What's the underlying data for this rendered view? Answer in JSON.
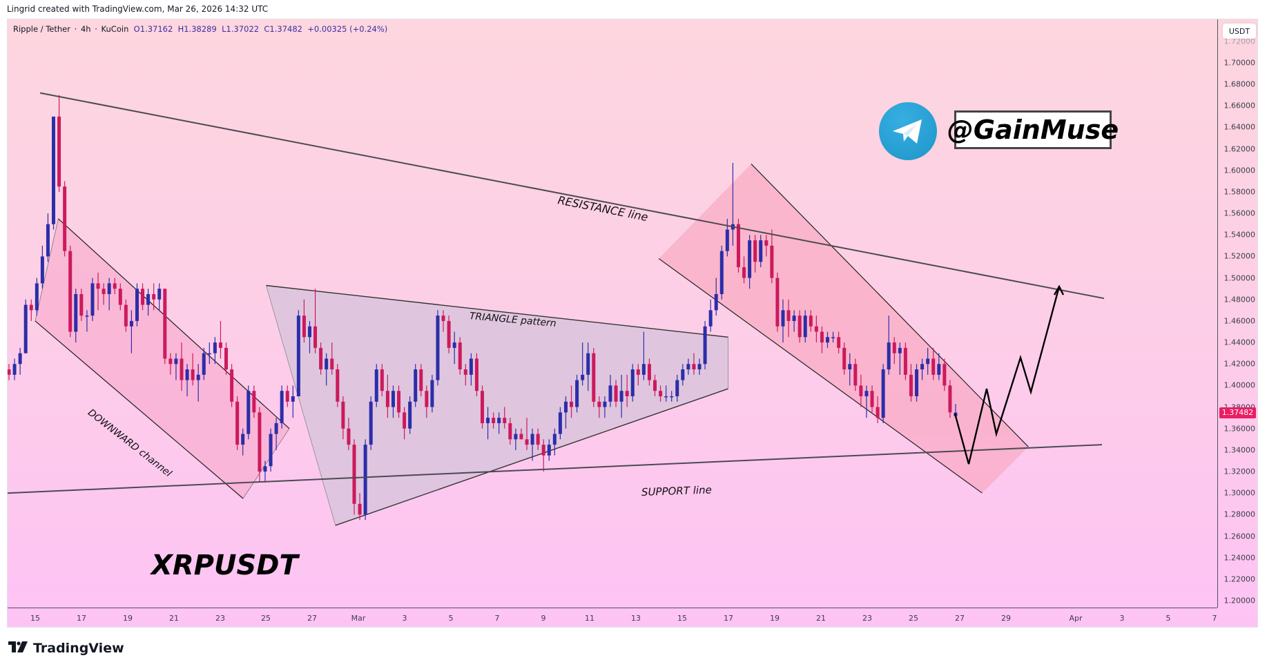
{
  "credit": "Lingrid created with TradingView.com, Mar 26, 2026 14:32 UTC",
  "legend": {
    "symbol": "Ripple / Tether",
    "interval": "4h",
    "exchange": "KuCoin",
    "open": "O1.37162",
    "high": "H1.38289",
    "low": "L1.37022",
    "close": "C1.37482",
    "change": "+0.00325 (+0.24%)"
  },
  "price_axis": {
    "currency": "USDT",
    "last_price": "1.37482",
    "ticks": [
      "1.72000",
      "1.70000",
      "1.68000",
      "1.66000",
      "1.64000",
      "1.62000",
      "1.60000",
      "1.58000",
      "1.56000",
      "1.54000",
      "1.52000",
      "1.50000",
      "1.48000",
      "1.46000",
      "1.44000",
      "1.42000",
      "1.40000",
      "1.38000",
      "1.36000",
      "1.34000",
      "1.32000",
      "1.30000",
      "1.28000",
      "1.26000",
      "1.24000",
      "1.22000",
      "1.20000"
    ]
  },
  "time_axis": {
    "labels": [
      "15",
      "17",
      "19",
      "21",
      "23",
      "25",
      "27",
      "Mar",
      "3",
      "5",
      "7",
      "9",
      "11",
      "13",
      "15",
      "17",
      "19",
      "21",
      "23",
      "25",
      "27",
      "29",
      "Apr",
      "3",
      "5",
      "7"
    ]
  },
  "annotations": {
    "resistance": "RESISTANCE line",
    "triangle": "TRIANGLE pattern",
    "downward": "DOWNWARD channel",
    "support": "SUPPORT line",
    "symbol_label": "XRPUSDT",
    "handle": "@GainMuse",
    "telegram_icon": "telegram-icon"
  },
  "branding": {
    "logo_text": "TradingView"
  },
  "colors": {
    "up_candle": "#2b2ea8",
    "down_candle": "#cc1a5c",
    "last_price_bg": "#e91e63",
    "channel_fill": "#f7a6c8",
    "triangle_fill": "#d9c4dc",
    "telegram_blue": "#2aa3dc"
  },
  "chart_data": {
    "type": "candlestick",
    "title": "Ripple / Tether · 4h · KuCoin",
    "xlabel": "",
    "ylabel": "USDT",
    "ylim": [
      1.19,
      1.725
    ],
    "x_range": [
      "Feb 14",
      "Apr 8"
    ],
    "last": {
      "open": 1.37162,
      "high": 1.38289,
      "low": 1.37022,
      "close": 1.37482,
      "change": 0.00325,
      "change_pct": 0.24
    },
    "candles_ohlc": [
      [
        1.415,
        1.42,
        1.405,
        1.41
      ],
      [
        1.41,
        1.425,
        1.405,
        1.42
      ],
      [
        1.42,
        1.435,
        1.41,
        1.43
      ],
      [
        1.43,
        1.48,
        1.43,
        1.475
      ],
      [
        1.475,
        1.48,
        1.46,
        1.47
      ],
      [
        1.47,
        1.5,
        1.465,
        1.495
      ],
      [
        1.495,
        1.53,
        1.49,
        1.52
      ],
      [
        1.52,
        1.56,
        1.515,
        1.55
      ],
      [
        1.55,
        1.65,
        1.545,
        1.65
      ],
      [
        1.65,
        1.67,
        1.58,
        1.585
      ],
      [
        1.585,
        1.59,
        1.52,
        1.525
      ],
      [
        1.525,
        1.53,
        1.445,
        1.45
      ],
      [
        1.45,
        1.49,
        1.44,
        1.485
      ],
      [
        1.485,
        1.49,
        1.46,
        1.465
      ],
      [
        1.465,
        1.47,
        1.45,
        1.465
      ],
      [
        1.465,
        1.5,
        1.46,
        1.495
      ],
      [
        1.495,
        1.505,
        1.47,
        1.49
      ],
      [
        1.49,
        1.495,
        1.475,
        1.485
      ],
      [
        1.485,
        1.5,
        1.47,
        1.495
      ],
      [
        1.495,
        1.5,
        1.485,
        1.49
      ],
      [
        1.49,
        1.495,
        1.47,
        1.475
      ],
      [
        1.475,
        1.48,
        1.45,
        1.455
      ],
      [
        1.455,
        1.47,
        1.43,
        1.46
      ],
      [
        1.46,
        1.495,
        1.455,
        1.49
      ],
      [
        1.49,
        1.495,
        1.47,
        1.475
      ],
      [
        1.475,
        1.49,
        1.465,
        1.485
      ],
      [
        1.485,
        1.495,
        1.47,
        1.48
      ],
      [
        1.48,
        1.495,
        1.47,
        1.49
      ],
      [
        1.49,
        1.49,
        1.42,
        1.425
      ],
      [
        1.425,
        1.43,
        1.41,
        1.42
      ],
      [
        1.42,
        1.43,
        1.405,
        1.425
      ],
      [
        1.425,
        1.44,
        1.395,
        1.405
      ],
      [
        1.405,
        1.42,
        1.39,
        1.415
      ],
      [
        1.415,
        1.43,
        1.4,
        1.405
      ],
      [
        1.405,
        1.42,
        1.385,
        1.41
      ],
      [
        1.41,
        1.435,
        1.405,
        1.43
      ],
      [
        1.43,
        1.44,
        1.42,
        1.43
      ],
      [
        1.43,
        1.445,
        1.42,
        1.44
      ],
      [
        1.44,
        1.46,
        1.425,
        1.435
      ],
      [
        1.435,
        1.44,
        1.41,
        1.415
      ],
      [
        1.415,
        1.42,
        1.38,
        1.385
      ],
      [
        1.385,
        1.39,
        1.34,
        1.345
      ],
      [
        1.345,
        1.36,
        1.335,
        1.355
      ],
      [
        1.355,
        1.4,
        1.35,
        1.395
      ],
      [
        1.395,
        1.4,
        1.37,
        1.375
      ],
      [
        1.375,
        1.38,
        1.31,
        1.32
      ],
      [
        1.32,
        1.33,
        1.31,
        1.325
      ],
      [
        1.325,
        1.36,
        1.32,
        1.355
      ],
      [
        1.355,
        1.37,
        1.34,
        1.365
      ],
      [
        1.365,
        1.4,
        1.36,
        1.395
      ],
      [
        1.395,
        1.4,
        1.38,
        1.385
      ],
      [
        1.385,
        1.4,
        1.37,
        1.39
      ],
      [
        1.39,
        1.47,
        1.39,
        1.465
      ],
      [
        1.465,
        1.48,
        1.44,
        1.445
      ],
      [
        1.445,
        1.46,
        1.43,
        1.455
      ],
      [
        1.455,
        1.49,
        1.43,
        1.435
      ],
      [
        1.435,
        1.44,
        1.41,
        1.415
      ],
      [
        1.415,
        1.43,
        1.4,
        1.425
      ],
      [
        1.425,
        1.44,
        1.41,
        1.415
      ],
      [
        1.415,
        1.42,
        1.38,
        1.385
      ],
      [
        1.385,
        1.39,
        1.35,
        1.36
      ],
      [
        1.36,
        1.37,
        1.34,
        1.345
      ],
      [
        1.345,
        1.35,
        1.28,
        1.29
      ],
      [
        1.29,
        1.3,
        1.275,
        1.28
      ],
      [
        1.28,
        1.35,
        1.275,
        1.345
      ],
      [
        1.345,
        1.39,
        1.34,
        1.385
      ],
      [
        1.385,
        1.42,
        1.38,
        1.415
      ],
      [
        1.415,
        1.42,
        1.39,
        1.395
      ],
      [
        1.395,
        1.41,
        1.37,
        1.38
      ],
      [
        1.38,
        1.4,
        1.37,
        1.395
      ],
      [
        1.395,
        1.4,
        1.37,
        1.375
      ],
      [
        1.375,
        1.38,
        1.35,
        1.36
      ],
      [
        1.36,
        1.39,
        1.355,
        1.385
      ],
      [
        1.385,
        1.42,
        1.38,
        1.415
      ],
      [
        1.415,
        1.42,
        1.39,
        1.395
      ],
      [
        1.395,
        1.4,
        1.37,
        1.38
      ],
      [
        1.38,
        1.41,
        1.375,
        1.405
      ],
      [
        1.405,
        1.47,
        1.4,
        1.465
      ],
      [
        1.465,
        1.47,
        1.45,
        1.46
      ],
      [
        1.46,
        1.465,
        1.43,
        1.435
      ],
      [
        1.435,
        1.45,
        1.42,
        1.44
      ],
      [
        1.44,
        1.445,
        1.41,
        1.415
      ],
      [
        1.415,
        1.42,
        1.4,
        1.41
      ],
      [
        1.41,
        1.43,
        1.4,
        1.425
      ],
      [
        1.425,
        1.43,
        1.39,
        1.395
      ],
      [
        1.395,
        1.4,
        1.36,
        1.365
      ],
      [
        1.365,
        1.38,
        1.35,
        1.37
      ],
      [
        1.37,
        1.375,
        1.36,
        1.365
      ],
      [
        1.365,
        1.375,
        1.355,
        1.37
      ],
      [
        1.37,
        1.38,
        1.36,
        1.365
      ],
      [
        1.365,
        1.37,
        1.345,
        1.35
      ],
      [
        1.35,
        1.36,
        1.34,
        1.355
      ],
      [
        1.355,
        1.36,
        1.35,
        1.35
      ],
      [
        1.35,
        1.37,
        1.34,
        1.345
      ],
      [
        1.345,
        1.36,
        1.33,
        1.355
      ],
      [
        1.355,
        1.36,
        1.34,
        1.345
      ],
      [
        1.345,
        1.35,
        1.32,
        1.335
      ],
      [
        1.335,
        1.35,
        1.33,
        1.345
      ],
      [
        1.345,
        1.36,
        1.335,
        1.355
      ],
      [
        1.355,
        1.38,
        1.35,
        1.375
      ],
      [
        1.375,
        1.39,
        1.36,
        1.385
      ],
      [
        1.385,
        1.4,
        1.37,
        1.38
      ],
      [
        1.38,
        1.41,
        1.375,
        1.405
      ],
      [
        1.405,
        1.44,
        1.4,
        1.41
      ],
      [
        1.41,
        1.44,
        1.395,
        1.43
      ],
      [
        1.43,
        1.435,
        1.38,
        1.385
      ],
      [
        1.385,
        1.39,
        1.37,
        1.38
      ],
      [
        1.38,
        1.39,
        1.37,
        1.385
      ],
      [
        1.385,
        1.41,
        1.38,
        1.4
      ],
      [
        1.4,
        1.405,
        1.38,
        1.385
      ],
      [
        1.385,
        1.41,
        1.37,
        1.395
      ],
      [
        1.395,
        1.41,
        1.38,
        1.39
      ],
      [
        1.39,
        1.42,
        1.385,
        1.415
      ],
      [
        1.415,
        1.42,
        1.4,
        1.41
      ],
      [
        1.41,
        1.45,
        1.405,
        1.42
      ],
      [
        1.42,
        1.425,
        1.4,
        1.405
      ],
      [
        1.405,
        1.41,
        1.39,
        1.395
      ],
      [
        1.395,
        1.4,
        1.385,
        1.39
      ],
      [
        1.39,
        1.4,
        1.385,
        1.39
      ],
      [
        1.39,
        1.395,
        1.385,
        1.39
      ],
      [
        1.39,
        1.41,
        1.385,
        1.405
      ],
      [
        1.405,
        1.42,
        1.4,
        1.415
      ],
      [
        1.415,
        1.425,
        1.41,
        1.42
      ],
      [
        1.42,
        1.43,
        1.41,
        1.415
      ],
      [
        1.415,
        1.425,
        1.41,
        1.42
      ],
      [
        1.42,
        1.46,
        1.415,
        1.455
      ],
      [
        1.455,
        1.48,
        1.45,
        1.47
      ],
      [
        1.47,
        1.5,
        1.465,
        1.485
      ],
      [
        1.485,
        1.53,
        1.48,
        1.525
      ],
      [
        1.525,
        1.555,
        1.52,
        1.545
      ],
      [
        1.545,
        1.607,
        1.53,
        1.55
      ],
      [
        1.55,
        1.555,
        1.505,
        1.51
      ],
      [
        1.51,
        1.52,
        1.495,
        1.5
      ],
      [
        1.5,
        1.54,
        1.49,
        1.535
      ],
      [
        1.535,
        1.54,
        1.505,
        1.515
      ],
      [
        1.515,
        1.54,
        1.51,
        1.535
      ],
      [
        1.535,
        1.54,
        1.52,
        1.53
      ],
      [
        1.53,
        1.545,
        1.495,
        1.5
      ],
      [
        1.5,
        1.505,
        1.45,
        1.455
      ],
      [
        1.455,
        1.48,
        1.44,
        1.47
      ],
      [
        1.47,
        1.48,
        1.445,
        1.46
      ],
      [
        1.46,
        1.47,
        1.45,
        1.465
      ],
      [
        1.465,
        1.47,
        1.44,
        1.445
      ],
      [
        1.445,
        1.47,
        1.44,
        1.465
      ],
      [
        1.465,
        1.47,
        1.45,
        1.455
      ],
      [
        1.455,
        1.465,
        1.44,
        1.45
      ],
      [
        1.45,
        1.455,
        1.43,
        1.44
      ],
      [
        1.44,
        1.45,
        1.435,
        1.445
      ],
      [
        1.445,
        1.45,
        1.44,
        1.445
      ],
      [
        1.445,
        1.45,
        1.43,
        1.435
      ],
      [
        1.435,
        1.44,
        1.41,
        1.415
      ],
      [
        1.415,
        1.43,
        1.4,
        1.42
      ],
      [
        1.42,
        1.425,
        1.395,
        1.4
      ],
      [
        1.4,
        1.41,
        1.38,
        1.39
      ],
      [
        1.39,
        1.4,
        1.37,
        1.395
      ],
      [
        1.395,
        1.4,
        1.375,
        1.38
      ],
      [
        1.38,
        1.39,
        1.365,
        1.37
      ],
      [
        1.37,
        1.42,
        1.365,
        1.415
      ],
      [
        1.415,
        1.465,
        1.41,
        1.44
      ],
      [
        1.44,
        1.445,
        1.42,
        1.43
      ],
      [
        1.43,
        1.44,
        1.41,
        1.435
      ],
      [
        1.435,
        1.44,
        1.405,
        1.41
      ],
      [
        1.41,
        1.42,
        1.385,
        1.39
      ],
      [
        1.39,
        1.42,
        1.385,
        1.415
      ],
      [
        1.415,
        1.425,
        1.405,
        1.42
      ],
      [
        1.42,
        1.435,
        1.41,
        1.425
      ],
      [
        1.425,
        1.435,
        1.405,
        1.41
      ],
      [
        1.41,
        1.43,
        1.405,
        1.42
      ],
      [
        1.42,
        1.425,
        1.395,
        1.4
      ],
      [
        1.4,
        1.405,
        1.37,
        1.375
      ],
      [
        1.37162,
        1.38289,
        1.37022,
        1.37482
      ]
    ],
    "drawings": {
      "resistance_line": {
        "from": [
          "Feb 15",
          1.672
        ],
        "to": [
          "Apr 1",
          1.481
        ]
      },
      "support_line": {
        "from": [
          "Feb 14",
          1.3
        ],
        "to": [
          "Apr 1",
          1.345
        ]
      },
      "downward_channel_1": {
        "top": [
          [
            "Feb 16",
            1.555
          ],
          [
            "Feb 26",
            1.36
          ]
        ],
        "bottom": [
          [
            "Feb 15",
            1.46
          ],
          [
            "Feb 24",
            1.295
          ]
        ]
      },
      "triangle": {
        "vertices": [
          [
            "Feb 25",
            1.493
          ],
          [
            "Mar 16",
            1.445
          ],
          [
            "Mar 16",
            1.397
          ],
          [
            "Feb 28",
            1.27
          ]
        ]
      },
      "downward_channel_2": {
        "top": [
          [
            "Mar 17",
            1.606
          ],
          [
            "Mar 29",
            1.343
          ]
        ],
        "bottom": [
          [
            "Mar 13",
            1.518
          ],
          [
            "Mar 27",
            1.3
          ]
        ]
      },
      "projection_path": [
        [
          "Mar 26",
          1.374
        ],
        [
          "Mar 27",
          1.327
        ],
        [
          "Mar 28",
          1.397
        ],
        [
          "Mar 29",
          1.355
        ],
        [
          "Mar 30",
          1.426
        ],
        [
          "Mar 31",
          1.394
        ],
        [
          "Apr 1",
          1.492
        ]
      ]
    }
  }
}
